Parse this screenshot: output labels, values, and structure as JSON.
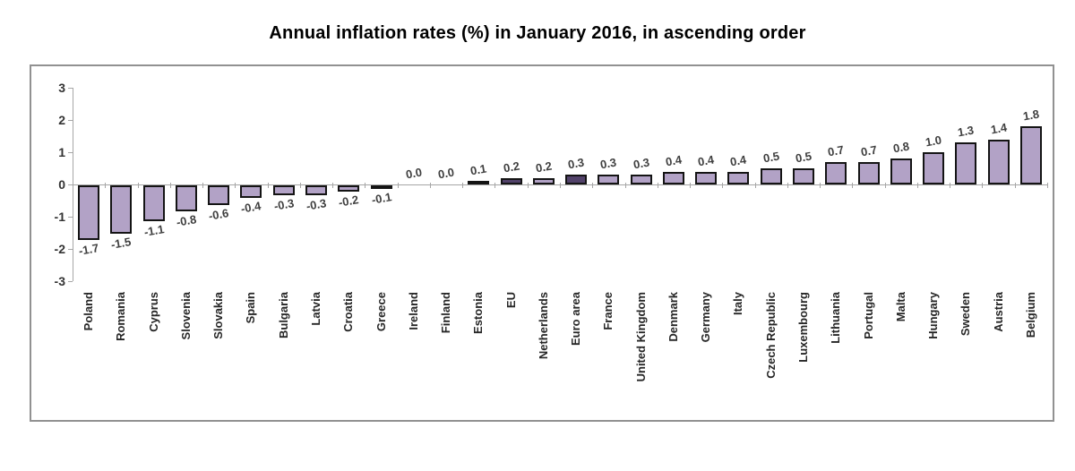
{
  "chart_data": {
    "type": "bar",
    "title": "Annual inflation rates (%) in January 2016, in ascending order",
    "categories": [
      "Poland",
      "Romania",
      "Cyprus",
      "Slovenia",
      "Slovakia",
      "Spain",
      "Bulgaria",
      "Latvia",
      "Croatia",
      "Greece",
      "Ireland",
      "Finland",
      "Estonia",
      "EU",
      "Netherlands",
      "Euro area",
      "France",
      "United Kingdom",
      "Denmark",
      "Germany",
      "Italy",
      "Czech Republic",
      "Luxembourg",
      "Lithuania",
      "Portugal",
      "Malta",
      "Hungary",
      "Sweden",
      "Austria",
      "Belgium"
    ],
    "values": [
      -1.7,
      -1.5,
      -1.1,
      -0.8,
      -0.6,
      -0.4,
      -0.3,
      -0.3,
      -0.2,
      -0.1,
      0.0,
      0.0,
      0.1,
      0.2,
      0.2,
      0.3,
      0.3,
      0.3,
      0.4,
      0.4,
      0.4,
      0.5,
      0.5,
      0.7,
      0.7,
      0.8,
      1.0,
      1.3,
      1.4,
      1.8
    ],
    "value_labels": [
      "-1.7",
      "-1.5",
      "-1.1",
      "-0.8",
      "-0.6",
      "-0.4",
      "-0.3",
      "-0.3",
      "-0.2",
      "-0.1",
      "0.0",
      "0.0",
      "0.1",
      "0.2",
      "0.2",
      "0.3",
      "0.3",
      "0.3",
      "0.4",
      "0.4",
      "0.4",
      "0.5",
      "0.5",
      "0.7",
      "0.7",
      "0.8",
      "1.0",
      "1.3",
      "1.4",
      "1.8"
    ],
    "highlighted_categories": [
      "EU",
      "Euro area"
    ],
    "ylim": [
      -3,
      3
    ],
    "yticks": [
      3,
      2,
      1,
      0,
      -1,
      -2,
      -3
    ],
    "xlabel": "",
    "ylabel": "",
    "grid": false,
    "legend": "none",
    "colors": {
      "bar_fill": "#b2a2c6",
      "highlight_fill": "#52426a",
      "bar_border": "#141414",
      "axis": "#a6a6a6",
      "frame_border": "#919191",
      "value_label": "#3f3f3f",
      "category_label": "#262626",
      "title": "#000000"
    }
  }
}
